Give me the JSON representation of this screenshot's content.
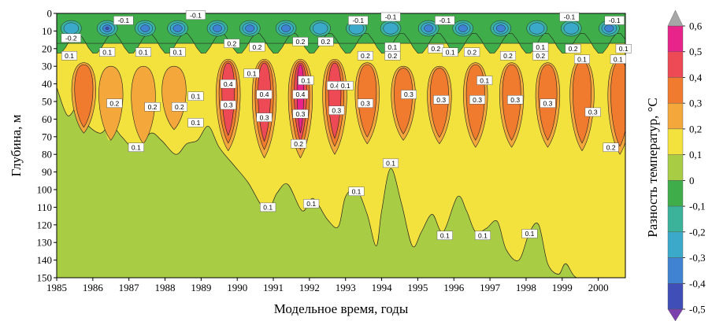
{
  "chart_data": {
    "type": "heatmap",
    "subtype": "filled-contour",
    "xlabel": "Модельное время, годы",
    "ylabel": "Глубина, м",
    "colorbar_label": "Разность температур, °С",
    "xlim": [
      1985,
      2000.75
    ],
    "ylim": [
      0,
      150
    ],
    "y_inverted": true,
    "x_ticks": [
      "1985",
      "1986",
      "1987",
      "1988",
      "1989",
      "1990",
      "1991",
      "1992",
      "1993",
      "1994",
      "1995",
      "1996",
      "1997",
      "1998",
      "1999",
      "2000"
    ],
    "y_ticks": [
      "0",
      "10",
      "20",
      "30",
      "40",
      "50",
      "60",
      "70",
      "80",
      "90",
      "100",
      "110",
      "120",
      "130",
      "140",
      "150"
    ],
    "colorbar": {
      "ticks": [
        "0,6",
        "0,5",
        "0,4",
        "0,3",
        "0,2",
        "0,1",
        "0",
        "-0,1",
        "-0,2",
        "-0,3",
        "-0,4",
        "-0,5"
      ],
      "levels": [
        {
          "min": 0.5,
          "max": 0.6,
          "color": "#e8238a"
        },
        {
          "min": 0.4,
          "max": 0.5,
          "color": "#ee4a55"
        },
        {
          "min": 0.3,
          "max": 0.4,
          "color": "#f07a2e"
        },
        {
          "min": 0.2,
          "max": 0.3,
          "color": "#f4a83c"
        },
        {
          "min": 0.1,
          "max": 0.2,
          "color": "#f3e23e"
        },
        {
          "min": 0.0,
          "max": 0.1,
          "color": "#a9cc45"
        },
        {
          "min": -0.1,
          "max": 0.0,
          "color": "#3fae4a"
        },
        {
          "min": -0.2,
          "max": -0.1,
          "color": "#3bb39a"
        },
        {
          "min": -0.3,
          "max": -0.2,
          "color": "#3ba9c9"
        },
        {
          "min": -0.4,
          "max": -0.3,
          "color": "#3f83d2"
        },
        {
          "min": -0.5,
          "max": -0.4,
          "color": "#3f4fb7"
        }
      ],
      "over_color": "#a7a7a7",
      "under_color": "#7b3fae"
    },
    "boundary_01_depth": [
      [
        1985.0,
        42
      ],
      [
        1985.3,
        58
      ],
      [
        1985.6,
        52
      ],
      [
        1985.8,
        62
      ],
      [
        1986.2,
        68
      ],
      [
        1986.5,
        63
      ],
      [
        1986.8,
        70
      ],
      [
        1987.2,
        77
      ],
      [
        1987.6,
        68
      ],
      [
        1987.9,
        72
      ],
      [
        1988.3,
        80
      ],
      [
        1988.6,
        74
      ],
      [
        1988.9,
        72
      ],
      [
        1989.2,
        64
      ],
      [
        1989.5,
        76
      ],
      [
        1989.9,
        86
      ],
      [
        1990.3,
        96
      ],
      [
        1990.8,
        112
      ],
      [
        1991.1,
        102
      ],
      [
        1991.4,
        97
      ],
      [
        1991.8,
        112
      ],
      [
        1992.1,
        105
      ],
      [
        1992.5,
        117
      ],
      [
        1992.8,
        121
      ],
      [
        1993.0,
        104
      ],
      [
        1993.3,
        100
      ],
      [
        1993.6,
        114
      ],
      [
        1993.85,
        132
      ],
      [
        1994.0,
        112
      ],
      [
        1994.25,
        88
      ],
      [
        1994.55,
        108
      ],
      [
        1994.85,
        132
      ],
      [
        1995.1,
        124
      ],
      [
        1995.4,
        114
      ],
      [
        1995.7,
        124
      ],
      [
        1996.1,
        104
      ],
      [
        1996.35,
        112
      ],
      [
        1996.6,
        124
      ],
      [
        1996.9,
        122
      ],
      [
        1997.2,
        118
      ],
      [
        1997.45,
        134
      ],
      [
        1997.8,
        140
      ],
      [
        1998.1,
        124
      ],
      [
        1998.35,
        120
      ],
      [
        1998.6,
        142
      ],
      [
        1998.9,
        148
      ],
      [
        1999.1,
        142
      ],
      [
        1999.4,
        150
      ],
      [
        2000.0,
        150
      ],
      [
        2000.75,
        150
      ]
    ],
    "boundary_02_depth": [
      [
        1985.2,
        28
      ],
      [
        1985.7,
        66
      ],
      [
        1986.0,
        30
      ],
      [
        1986.45,
        72
      ],
      [
        1986.85,
        30
      ],
      [
        1987.35,
        78
      ],
      [
        1987.75,
        30
      ],
      [
        1988.25,
        68
      ],
      [
        1988.6,
        29
      ],
      [
        1989.05,
        60
      ],
      [
        1989.3,
        26
      ],
      [
        1989.8,
        80
      ],
      [
        1990.2,
        26
      ],
      [
        1990.75,
        86
      ],
      [
        1991.15,
        26
      ],
      [
        1991.7,
        86
      ],
      [
        1992.05,
        26
      ],
      [
        1992.55,
        84
      ],
      [
        1992.95,
        26
      ],
      [
        1993.35,
        78
      ],
      [
        1993.75,
        28
      ],
      [
        1994.15,
        72
      ],
      [
        1994.55,
        30
      ],
      [
        1994.95,
        74
      ],
      [
        1995.35,
        30
      ],
      [
        1995.75,
        76
      ],
      [
        1996.15,
        28
      ],
      [
        1996.55,
        78
      ],
      [
        1996.95,
        28
      ],
      [
        1997.4,
        80
      ],
      [
        1997.8,
        28
      ],
      [
        1998.25,
        80
      ],
      [
        1998.6,
        28
      ],
      [
        1999.1,
        78
      ],
      [
        1999.4,
        26
      ],
      [
        2000.0,
        80
      ],
      [
        2000.35,
        26
      ],
      [
        2000.75,
        84
      ]
    ],
    "warm_cores": [
      {
        "x": 1985.75,
        "y_top": 28,
        "y_bottom": 68,
        "max": 0.4
      },
      {
        "x": 1986.5,
        "y_top": 30,
        "y_bottom": 72,
        "max": 0.3
      },
      {
        "x": 1987.4,
        "y_top": 30,
        "y_bottom": 74,
        "max": 0.3
      },
      {
        "x": 1988.25,
        "y_top": 30,
        "y_bottom": 66,
        "max": 0.3
      },
      {
        "x": 1989.75,
        "y_top": 26,
        "y_bottom": 78,
        "max": 0.5
      },
      {
        "x": 1990.75,
        "y_top": 26,
        "y_bottom": 82,
        "max": 0.5
      },
      {
        "x": 1991.75,
        "y_top": 26,
        "y_bottom": 82,
        "max": 0.6
      },
      {
        "x": 1992.7,
        "y_top": 26,
        "y_bottom": 80,
        "max": 0.5
      },
      {
        "x": 1993.6,
        "y_top": 28,
        "y_bottom": 74,
        "max": 0.4
      },
      {
        "x": 1994.6,
        "y_top": 30,
        "y_bottom": 72,
        "max": 0.4
      },
      {
        "x": 1995.6,
        "y_top": 30,
        "y_bottom": 74,
        "max": 0.4
      },
      {
        "x": 1996.6,
        "y_top": 28,
        "y_bottom": 76,
        "max": 0.4
      },
      {
        "x": 1997.6,
        "y_top": 28,
        "y_bottom": 76,
        "max": 0.4
      },
      {
        "x": 1998.6,
        "y_top": 28,
        "y_bottom": 76,
        "max": 0.4
      },
      {
        "x": 1999.55,
        "y_top": 26,
        "y_bottom": 78,
        "max": 0.4
      },
      {
        "x": 2000.6,
        "y_top": 26,
        "y_bottom": 80,
        "max": 0.4
      }
    ],
    "cold_cores": [
      {
        "x": 1985.4,
        "min": -0.3
      },
      {
        "x": 1986.4,
        "min": -0.5
      },
      {
        "x": 1987.45,
        "min": -0.4
      },
      {
        "x": 1988.35,
        "min": -0.4
      },
      {
        "x": 1989.45,
        "min": -0.4
      },
      {
        "x": 1990.35,
        "min": -0.4
      },
      {
        "x": 1991.35,
        "min": -0.4
      },
      {
        "x": 1992.3,
        "min": -0.3
      },
      {
        "x": 1993.3,
        "min": -0.3
      },
      {
        "x": 1994.25,
        "min": -0.3
      },
      {
        "x": 1995.3,
        "min": -0.4
      },
      {
        "x": 1996.25,
        "min": -0.4
      },
      {
        "x": 1997.3,
        "min": -0.4
      },
      {
        "x": 1998.3,
        "min": -0.3
      },
      {
        "x": 1999.25,
        "min": -0.3
      },
      {
        "x": 2000.3,
        "min": -0.4
      }
    ],
    "annotations": [
      {
        "text": "-0.1",
        "x": 1986.85,
        "y": 4
      },
      {
        "text": "-0.1",
        "x": 1988.85,
        "y": 1
      },
      {
        "text": "-0.1",
        "x": 1993.35,
        "y": 4
      },
      {
        "text": "-0.1",
        "x": 1994.25,
        "y": 2
      },
      {
        "text": "-0.1",
        "x": 1995.75,
        "y": 4
      },
      {
        "text": "-0.1",
        "x": 1999.2,
        "y": 2
      },
      {
        "text": "-0.1",
        "x": 2000.45,
        "y": 4
      },
      {
        "text": "-0.2",
        "x": 1985.4,
        "y": 14
      },
      {
        "text": "0.1",
        "x": 1985.35,
        "y": 24
      },
      {
        "text": "0.1",
        "x": 1986.4,
        "y": 22
      },
      {
        "text": "0.1",
        "x": 1987.4,
        "y": 22
      },
      {
        "text": "0.1",
        "x": 1988.35,
        "y": 22
      },
      {
        "text": "0.2",
        "x": 1989.85,
        "y": 17
      },
      {
        "text": "0.2",
        "x": 1990.55,
        "y": 19
      },
      {
        "text": "0.2",
        "x": 1991.75,
        "y": 16
      },
      {
        "text": "0.2",
        "x": 1992.45,
        "y": 16
      },
      {
        "text": "0.2",
        "x": 1993.55,
        "y": 24
      },
      {
        "text": "0.1",
        "x": 1994.3,
        "y": 19
      },
      {
        "text": "0.2",
        "x": 1994.3,
        "y": 24
      },
      {
        "text": "0.2",
        "x": 1995.5,
        "y": 20
      },
      {
        "text": "0.1",
        "x": 1995.9,
        "y": 22
      },
      {
        "text": "0.2",
        "x": 1996.5,
        "y": 22
      },
      {
        "text": "0.2",
        "x": 1997.5,
        "y": 24
      },
      {
        "text": "0.1",
        "x": 1998.4,
        "y": 19
      },
      {
        "text": "0.2",
        "x": 1998.4,
        "y": 24
      },
      {
        "text": "0.2",
        "x": 1999.3,
        "y": 20
      },
      {
        "text": "0.1",
        "x": 1999.55,
        "y": 26
      },
      {
        "text": "0.1",
        "x": 2000.55,
        "y": 26
      },
      {
        "text": "0.1",
        "x": 2000.7,
        "y": 20
      },
      {
        "text": "0.4",
        "x": 1989.75,
        "y": 40
      },
      {
        "text": "0.1",
        "x": 1990.4,
        "y": 34
      },
      {
        "text": "0.1",
        "x": 1991.9,
        "y": 38
      },
      {
        "text": "0.4",
        "x": 1990.75,
        "y": 46
      },
      {
        "text": "0.4",
        "x": 1991.75,
        "y": 46
      },
      {
        "text": "0.4",
        "x": 1992.7,
        "y": 41
      },
      {
        "text": "0.1",
        "x": 1993.0,
        "y": 41
      },
      {
        "text": "0.1",
        "x": 1996.85,
        "y": 38
      },
      {
        "text": "0.1",
        "x": 1988.85,
        "y": 47
      },
      {
        "text": "0.2",
        "x": 1986.6,
        "y": 51
      },
      {
        "text": "0.2",
        "x": 1987.65,
        "y": 53
      },
      {
        "text": "0.2",
        "x": 1988.4,
        "y": 53
      },
      {
        "text": "0.3",
        "x": 1989.75,
        "y": 52
      },
      {
        "text": "0.3",
        "x": 1990.75,
        "y": 59
      },
      {
        "text": "0.3",
        "x": 1991.75,
        "y": 57
      },
      {
        "text": "0.3",
        "x": 1992.75,
        "y": 55
      },
      {
        "text": "0.3",
        "x": 1993.55,
        "y": 51
      },
      {
        "text": "0.3",
        "x": 1994.75,
        "y": 46
      },
      {
        "text": "0.3",
        "x": 1995.65,
        "y": 49
      },
      {
        "text": "0.3",
        "x": 1996.65,
        "y": 49
      },
      {
        "text": "0.3",
        "x": 1997.7,
        "y": 49
      },
      {
        "text": "0.3",
        "x": 1998.6,
        "y": 51
      },
      {
        "text": "0.3",
        "x": 1999.85,
        "y": 56
      },
      {
        "text": "0.1",
        "x": 1988.85,
        "y": 62
      },
      {
        "text": "0.2",
        "x": 1991.7,
        "y": 74
      },
      {
        "text": "0.1",
        "x": 1987.2,
        "y": 76
      },
      {
        "text": "0.2",
        "x": 2000.35,
        "y": 76
      },
      {
        "text": "0.1",
        "x": 1994.25,
        "y": 85
      },
      {
        "text": "0.1",
        "x": 1993.3,
        "y": 101
      },
      {
        "text": "0.1",
        "x": 1990.85,
        "y": 110
      },
      {
        "text": "0.1",
        "x": 1992.05,
        "y": 108
      },
      {
        "text": "0.1",
        "x": 1995.75,
        "y": 126
      },
      {
        "text": "0.1",
        "x": 1996.8,
        "y": 126
      },
      {
        "text": "0.1",
        "x": 1998.1,
        "y": 125
      }
    ]
  }
}
